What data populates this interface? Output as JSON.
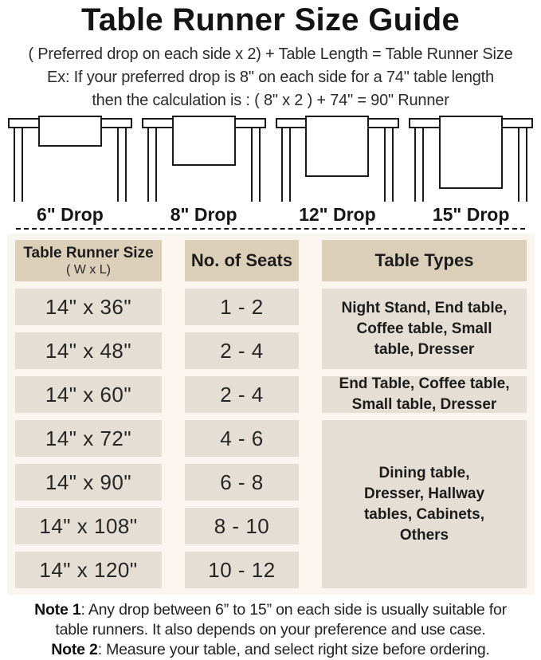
{
  "page": {
    "title": "Table Runner Size Guide",
    "formula": "( Preferred drop on each side x 2) + Table Length = Table Runner Size",
    "example_line1": "Ex: If your preferred drop is 8\" on each side for a 74\" table length",
    "example_line2": "then the calculation is : ( 8\" x 2 ) + 74\" = 90\" Runner"
  },
  "figures": [
    {
      "label": "6\" Drop"
    },
    {
      "label": "8\" Drop"
    },
    {
      "label": "12\" Drop"
    },
    {
      "label": "15\" Drop"
    }
  ],
  "size_table": {
    "headers": {
      "col1_line1": "Table Runner Size",
      "col1_line2": "( W x L)",
      "col2": "No. of Seats",
      "col3": "Table Types"
    },
    "rows": [
      {
        "size": "14\" x 36\"",
        "seats": "1 - 2"
      },
      {
        "size": "14\" x 48\"",
        "seats": "2 - 4"
      },
      {
        "size": "14\" x 60\"",
        "seats": "2 - 4"
      },
      {
        "size": "14\" x 72\"",
        "seats": "4 - 6"
      },
      {
        "size": "14\" x 90\"",
        "seats": "6 - 8"
      },
      {
        "size": "14\" x 108\"",
        "seats": "8 - 10"
      },
      {
        "size": "14\" x 120\"",
        "seats": "10 - 12"
      }
    ],
    "type_groups": [
      {
        "text": "Night Stand, End table,\nCoffee table, Small\ntable, Dresser"
      },
      {
        "text": "End Table, Coffee table,\nSmall table, Dresser"
      },
      {
        "text": "Dining table,\nDresser, Hallway\ntables, Cabinets,\nOthers"
      }
    ]
  },
  "notes": [
    {
      "label": "Note 1",
      "text": ": Any drop between 6” to 15” on each side is usually suitable for\ntable runners. It also depends on your preference and use case."
    },
    {
      "label": "Note 2",
      "text": ": Measure your table, and select right size before ordering."
    }
  ],
  "colors": {
    "header_cell": "#dccfba",
    "body_cell": "#e5ded5",
    "table_background": "#faf5ee",
    "ink": "#1a1a1a"
  }
}
